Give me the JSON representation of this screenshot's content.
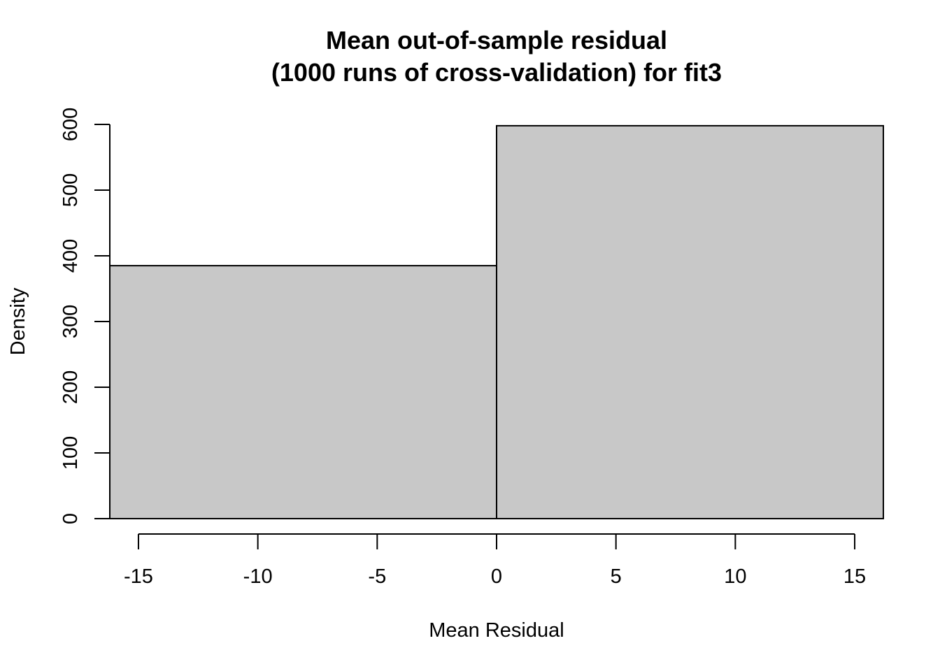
{
  "chart_data": {
    "type": "bar",
    "title_line1": "Mean out-of-sample residual",
    "title_line2": "(1000 runs of cross-validation) for fit3",
    "xlabel": "Mean Residual",
    "ylabel": "Density",
    "xlim": [
      -16.2,
      16.2
    ],
    "ylim": [
      0,
      600
    ],
    "x_ticks": [
      -15,
      -10,
      -5,
      0,
      5,
      10,
      15
    ],
    "x_tick_labels": [
      "-15",
      "-10",
      "-5",
      "0",
      "5",
      "10",
      "15"
    ],
    "y_ticks": [
      0,
      100,
      200,
      300,
      400,
      500,
      600
    ],
    "y_tick_labels": [
      "0",
      "100",
      "200",
      "300",
      "400",
      "500",
      "600"
    ],
    "bins": [
      {
        "x0": -16.2,
        "x1": 0,
        "value": 385
      },
      {
        "x0": 0,
        "x1": 16.2,
        "value": 598
      }
    ],
    "bar_fill": "#c8c8c8",
    "bar_stroke": "#000000",
    "grid": false,
    "legend": "none"
  }
}
